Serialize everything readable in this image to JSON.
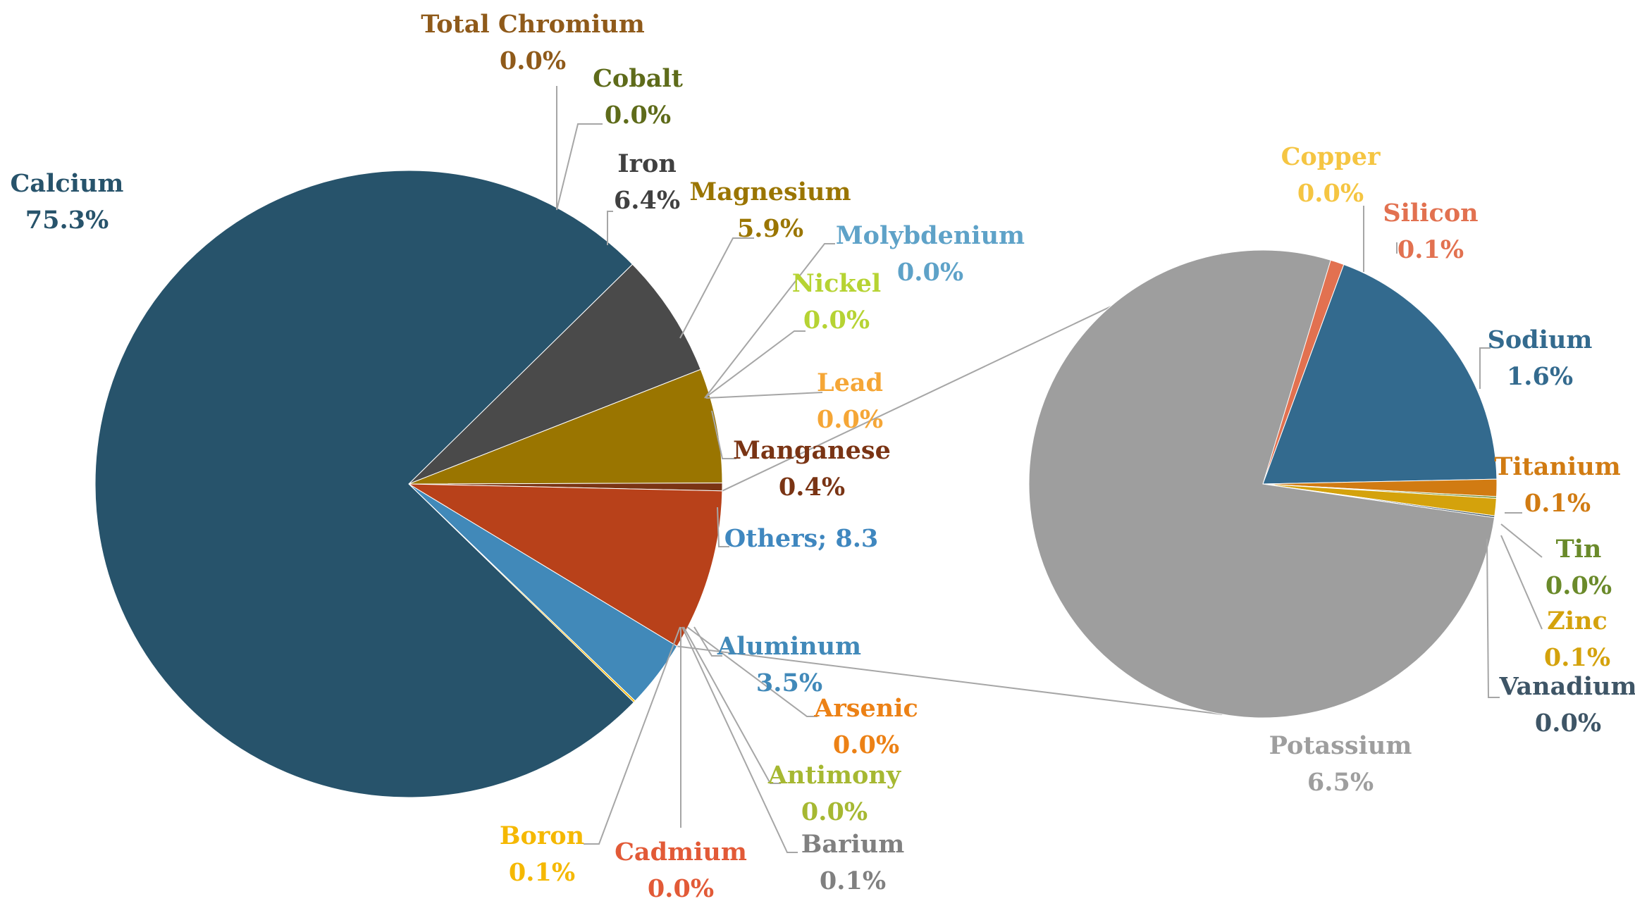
{
  "chart_data": {
    "type": "pie",
    "main_pie": {
      "slices": [
        {
          "label": "Calcium",
          "pct": "75.3%",
          "value": 75.3,
          "color": "#27536b"
        },
        {
          "label": "Iron",
          "pct": "6.4%",
          "value": 6.4,
          "color": "#4a4a4a"
        },
        {
          "label": "Magnesium",
          "pct": "5.9%",
          "value": 5.9,
          "color": "#9a7500"
        },
        {
          "label": "Manganese",
          "pct": "0.4%",
          "value": 0.4,
          "color": "#7a3414"
        },
        {
          "label": "Others; 8.3",
          "pct": "",
          "value": 8.3,
          "color": "#b8411a"
        },
        {
          "label": "Aluminum",
          "pct": "3.5%",
          "value": 3.5,
          "color": "#4189b9"
        },
        {
          "label": "Boron",
          "pct": "0.1%",
          "value": 0.1,
          "color": "#f5b800"
        },
        {
          "label": "Barium",
          "pct": "0.1%",
          "value": 0.1,
          "color": "#808080"
        },
        {
          "label": "Total Chromium",
          "pct": "0.0%",
          "value": 0.0,
          "color": "#8f5a1a"
        },
        {
          "label": "Cobalt",
          "pct": "0.0%",
          "value": 0.0,
          "color": "#5e6b1a"
        },
        {
          "label": "Molybdenium",
          "pct": "0.0%",
          "value": 0.0,
          "color": "#5ea2c8"
        },
        {
          "label": "Nickel",
          "pct": "0.0%",
          "value": 0.0,
          "color": "#b6d333"
        },
        {
          "label": "Lead",
          "pct": "0.0%",
          "value": 0.0,
          "color": "#f5a636"
        },
        {
          "label": "Arsenic",
          "pct": "0.0%",
          "value": 0.0,
          "color": "#ec8115"
        },
        {
          "label": "Antimony",
          "pct": "0.0%",
          "value": 0.0,
          "color": "#a6b832"
        },
        {
          "label": "Cadmium",
          "pct": "0.0%",
          "value": 0.0,
          "color": "#e25a37"
        }
      ]
    },
    "secondary_pie": {
      "parent": "Others; 8.3",
      "slices": [
        {
          "label": "Potassium",
          "pct": "6.5%",
          "value": 6.5,
          "color": "#9e9e9e"
        },
        {
          "label": "Copper",
          "pct": "0.0%",
          "value": 0.0,
          "color": "#f5c542"
        },
        {
          "label": "Silicon",
          "pct": "0.1%",
          "value": 0.1,
          "color": "#e27150"
        },
        {
          "label": "Sodium",
          "pct": "1.6%",
          "value": 1.6,
          "color": "#336a8e"
        },
        {
          "label": "Titanium",
          "pct": "0.1%",
          "value": 0.1,
          "color": "#d17b12"
        },
        {
          "label": "Tin",
          "pct": "0.0%",
          "value": 0.0,
          "color": "#6a8a2a"
        },
        {
          "label": "Zinc",
          "pct": "0.1%",
          "value": 0.1,
          "color": "#d4a20c"
        },
        {
          "label": "Vanadium",
          "pct": "0.0%",
          "value": 0.0,
          "color": "#3e5566"
        }
      ]
    }
  },
  "label_colors": {
    "Calcium": "#27536b",
    "Total Chromium": "#8f5a1a",
    "Cobalt": "#5e6b1a",
    "Iron": "#404040",
    "Magnesium": "#9a7500",
    "Molybdenium": "#5ea2c8",
    "Nickel": "#b6d333",
    "Lead": "#f5a636",
    "Manganese": "#7a3414",
    "Others; 8.3": "#3f87bf",
    "Aluminum": "#4189b9",
    "Arsenic": "#ec8115",
    "Antimony": "#a6b832",
    "Barium": "#808080",
    "Cadmium": "#e25a37",
    "Boron": "#f5b800",
    "Copper": "#f5c542",
    "Silicon": "#e27150",
    "Sodium": "#336a8e",
    "Titanium": "#d17b12",
    "Tin": "#6a8a2a",
    "Zinc": "#d4a20c",
    "Vanadium": "#3e5566",
    "Potassium": "#9e9e9e"
  }
}
